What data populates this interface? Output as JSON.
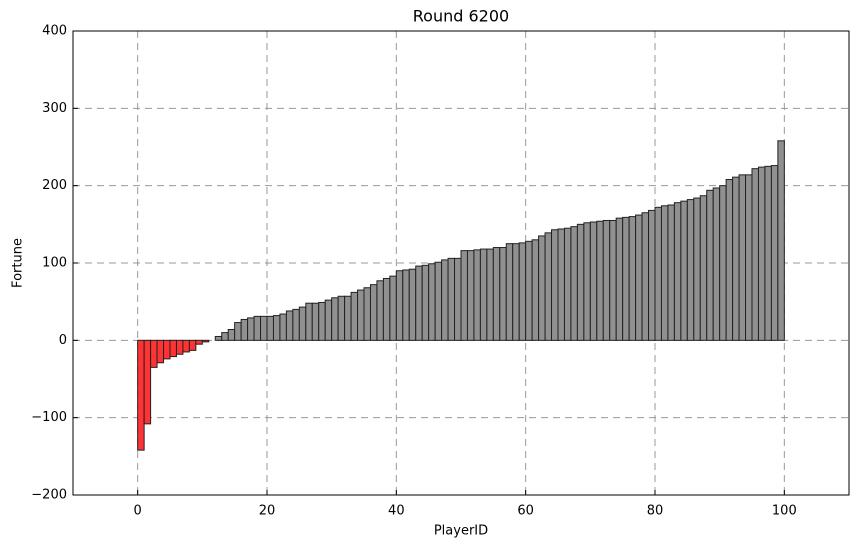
{
  "chart_data": {
    "type": "bar",
    "title": "Round 6200",
    "xlabel": "PlayerID",
    "ylabel": "Fortune",
    "x": [
      0,
      1,
      2,
      3,
      4,
      5,
      6,
      7,
      8,
      9,
      10,
      11,
      12,
      13,
      14,
      15,
      16,
      17,
      18,
      19,
      20,
      21,
      22,
      23,
      24,
      25,
      26,
      27,
      28,
      29,
      30,
      31,
      32,
      33,
      34,
      35,
      36,
      37,
      38,
      39,
      40,
      41,
      42,
      43,
      44,
      45,
      46,
      47,
      48,
      49,
      50,
      51,
      52,
      53,
      54,
      55,
      56,
      57,
      58,
      59,
      60,
      61,
      62,
      63,
      64,
      65,
      66,
      67,
      68,
      69,
      70,
      71,
      72,
      73,
      74,
      75,
      76,
      77,
      78,
      79,
      80,
      81,
      82,
      83,
      84,
      85,
      86,
      87,
      88,
      89,
      90,
      91,
      92,
      93,
      94,
      95,
      96,
      97,
      98,
      99
    ],
    "values": [
      -142,
      -108,
      -35,
      -29,
      -24,
      -21,
      -18,
      -15,
      -13,
      -5,
      -2,
      0,
      5,
      10,
      14,
      23,
      27,
      29,
      31,
      31,
      31,
      32,
      34,
      38,
      40,
      43,
      48,
      48,
      49,
      52,
      55,
      57,
      57,
      62,
      65,
      68,
      72,
      77,
      80,
      83,
      90,
      91,
      92,
      96,
      97,
      99,
      101,
      104,
      106,
      106,
      116,
      116,
      117,
      118,
      118,
      120,
      120,
      125,
      125,
      126,
      128,
      130,
      135,
      139,
      143,
      144,
      145,
      147,
      150,
      152,
      153,
      154,
      155,
      155,
      158,
      159,
      160,
      162,
      165,
      168,
      172,
      174,
      175,
      178,
      180,
      182,
      184,
      187,
      194,
      197,
      200,
      208,
      211,
      214,
      214,
      222,
      224,
      225,
      226,
      258
    ],
    "color": "#909090",
    "negative_color": "#ff3333",
    "xlim": [
      -10,
      110
    ],
    "xticks": [
      0,
      20,
      40,
      60,
      80,
      100
    ],
    "ylim": [
      -200,
      400
    ],
    "yticks": [
      {
        "value": -200,
        "label": "−200"
      },
      {
        "value": -100,
        "label": "−100"
      },
      0,
      100,
      200,
      300,
      400
    ],
    "grid": true
  }
}
